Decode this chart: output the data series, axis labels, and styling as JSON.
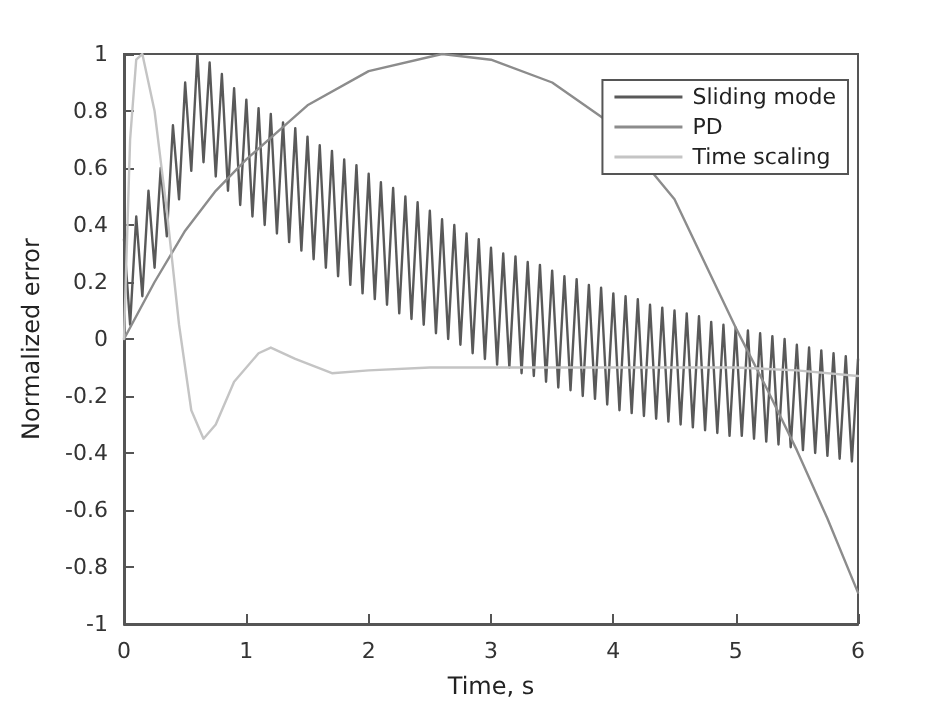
{
  "chart_data": {
    "type": "line",
    "xlabel": "Time, s",
    "ylabel": "Normalized error",
    "xlim": [
      0,
      6
    ],
    "xticks": [
      0,
      1,
      2,
      3,
      4,
      5,
      6
    ],
    "ylim": [
      -1,
      1
    ],
    "yticks": [
      -1,
      -0.8,
      -0.6,
      -0.4,
      -0.2,
      0,
      0.2,
      0.4,
      0.6,
      0.8,
      1
    ],
    "grid": false,
    "legend": "top right",
    "marker": "none",
    "line_style": "solid",
    "series": [
      {
        "name": "Sliding mode",
        "color": "#595959",
        "x": [
          0,
          0.05,
          0.1,
          0.15,
          0.2,
          0.25,
          0.3,
          0.35,
          0.4,
          0.45,
          0.5,
          0.55,
          0.6,
          0.65,
          0.7,
          0.75,
          0.8,
          0.85,
          0.9,
          0.95,
          1.0,
          1.05,
          1.1,
          1.15,
          1.2,
          1.25,
          1.3,
          1.35,
          1.4,
          1.45,
          1.5,
          1.55,
          1.6,
          1.65,
          1.7,
          1.75,
          1.8,
          1.85,
          1.9,
          1.95,
          2.0,
          2.05,
          2.1,
          2.15,
          2.2,
          2.25,
          2.3,
          2.35,
          2.4,
          2.45,
          2.5,
          2.55,
          2.6,
          2.65,
          2.7,
          2.75,
          2.8,
          2.85,
          2.9,
          2.95,
          3.0,
          3.05,
          3.1,
          3.15,
          3.2,
          3.25,
          3.3,
          3.35,
          3.4,
          3.45,
          3.5,
          3.55,
          3.6,
          3.65,
          3.7,
          3.75,
          3.8,
          3.85,
          3.9,
          3.95,
          4.0,
          4.05,
          4.1,
          4.15,
          4.2,
          4.25,
          4.3,
          4.35,
          4.4,
          4.45,
          4.5,
          4.55,
          4.6,
          4.65,
          4.7,
          4.75,
          4.8,
          4.85,
          4.9,
          4.95,
          5.0,
          5.05,
          5.1,
          5.15,
          5.2,
          5.25,
          5.3,
          5.35,
          5.4,
          5.45,
          5.5,
          5.55,
          5.6,
          5.65,
          5.7,
          5.75,
          5.8,
          5.85,
          5.9,
          5.95,
          6.0
        ],
        "values": [
          0.35,
          0.05,
          0.43,
          0.15,
          0.52,
          0.25,
          0.6,
          0.36,
          0.75,
          0.49,
          0.9,
          0.59,
          1.0,
          0.62,
          0.97,
          0.57,
          0.93,
          0.52,
          0.88,
          0.47,
          0.84,
          0.43,
          0.81,
          0.4,
          0.79,
          0.37,
          0.76,
          0.34,
          0.74,
          0.31,
          0.71,
          0.28,
          0.68,
          0.25,
          0.66,
          0.22,
          0.63,
          0.19,
          0.61,
          0.16,
          0.58,
          0.14,
          0.55,
          0.12,
          0.53,
          0.09,
          0.5,
          0.07,
          0.48,
          0.05,
          0.45,
          0.02,
          0.42,
          0.0,
          0.4,
          -0.02,
          0.37,
          -0.05,
          0.35,
          -0.07,
          0.32,
          -0.09,
          0.3,
          -0.1,
          0.29,
          -0.12,
          0.27,
          -0.13,
          0.26,
          -0.15,
          0.24,
          -0.17,
          0.22,
          -0.18,
          0.21,
          -0.2,
          0.19,
          -0.21,
          0.18,
          -0.23,
          0.16,
          -0.25,
          0.15,
          -0.26,
          0.14,
          -0.27,
          0.12,
          -0.28,
          0.11,
          -0.29,
          0.1,
          -0.3,
          0.09,
          -0.31,
          0.08,
          -0.32,
          0.06,
          -0.33,
          0.05,
          -0.34,
          0.04,
          -0.34,
          0.03,
          -0.35,
          0.02,
          -0.36,
          0.01,
          -0.37,
          0.0,
          -0.38,
          -0.02,
          -0.39,
          -0.03,
          -0.4,
          -0.04,
          -0.41,
          -0.05,
          -0.42,
          -0.06,
          -0.43,
          -0.07
        ]
      },
      {
        "name": "PD",
        "color": "#8c8c8c",
        "x": [
          0,
          0.25,
          0.5,
          0.75,
          1,
          1.5,
          2,
          2.6,
          3,
          3.5,
          4,
          4.5,
          5,
          5.25,
          5.5,
          5.75,
          6
        ],
        "values": [
          0,
          0.2,
          0.38,
          0.52,
          0.63,
          0.82,
          0.94,
          1.0,
          0.98,
          0.9,
          0.75,
          0.49,
          0.04,
          -0.17,
          -0.39,
          -0.63,
          -0.89
        ]
      },
      {
        "name": "Time scaling",
        "color": "#c4c4c4",
        "x": [
          0,
          0.05,
          0.1,
          0.15,
          0.25,
          0.35,
          0.45,
          0.55,
          0.65,
          0.75,
          0.9,
          1.1,
          1.2,
          1.4,
          1.7,
          2,
          2.5,
          3,
          4,
          5,
          5.5,
          6
        ],
        "values": [
          0,
          0.7,
          0.98,
          1.0,
          0.8,
          0.45,
          0.05,
          -0.25,
          -0.35,
          -0.3,
          -0.15,
          -0.05,
          -0.03,
          -0.07,
          -0.12,
          -0.11,
          -0.1,
          -0.1,
          -0.1,
          -0.1,
          -0.11,
          -0.13
        ]
      }
    ]
  }
}
